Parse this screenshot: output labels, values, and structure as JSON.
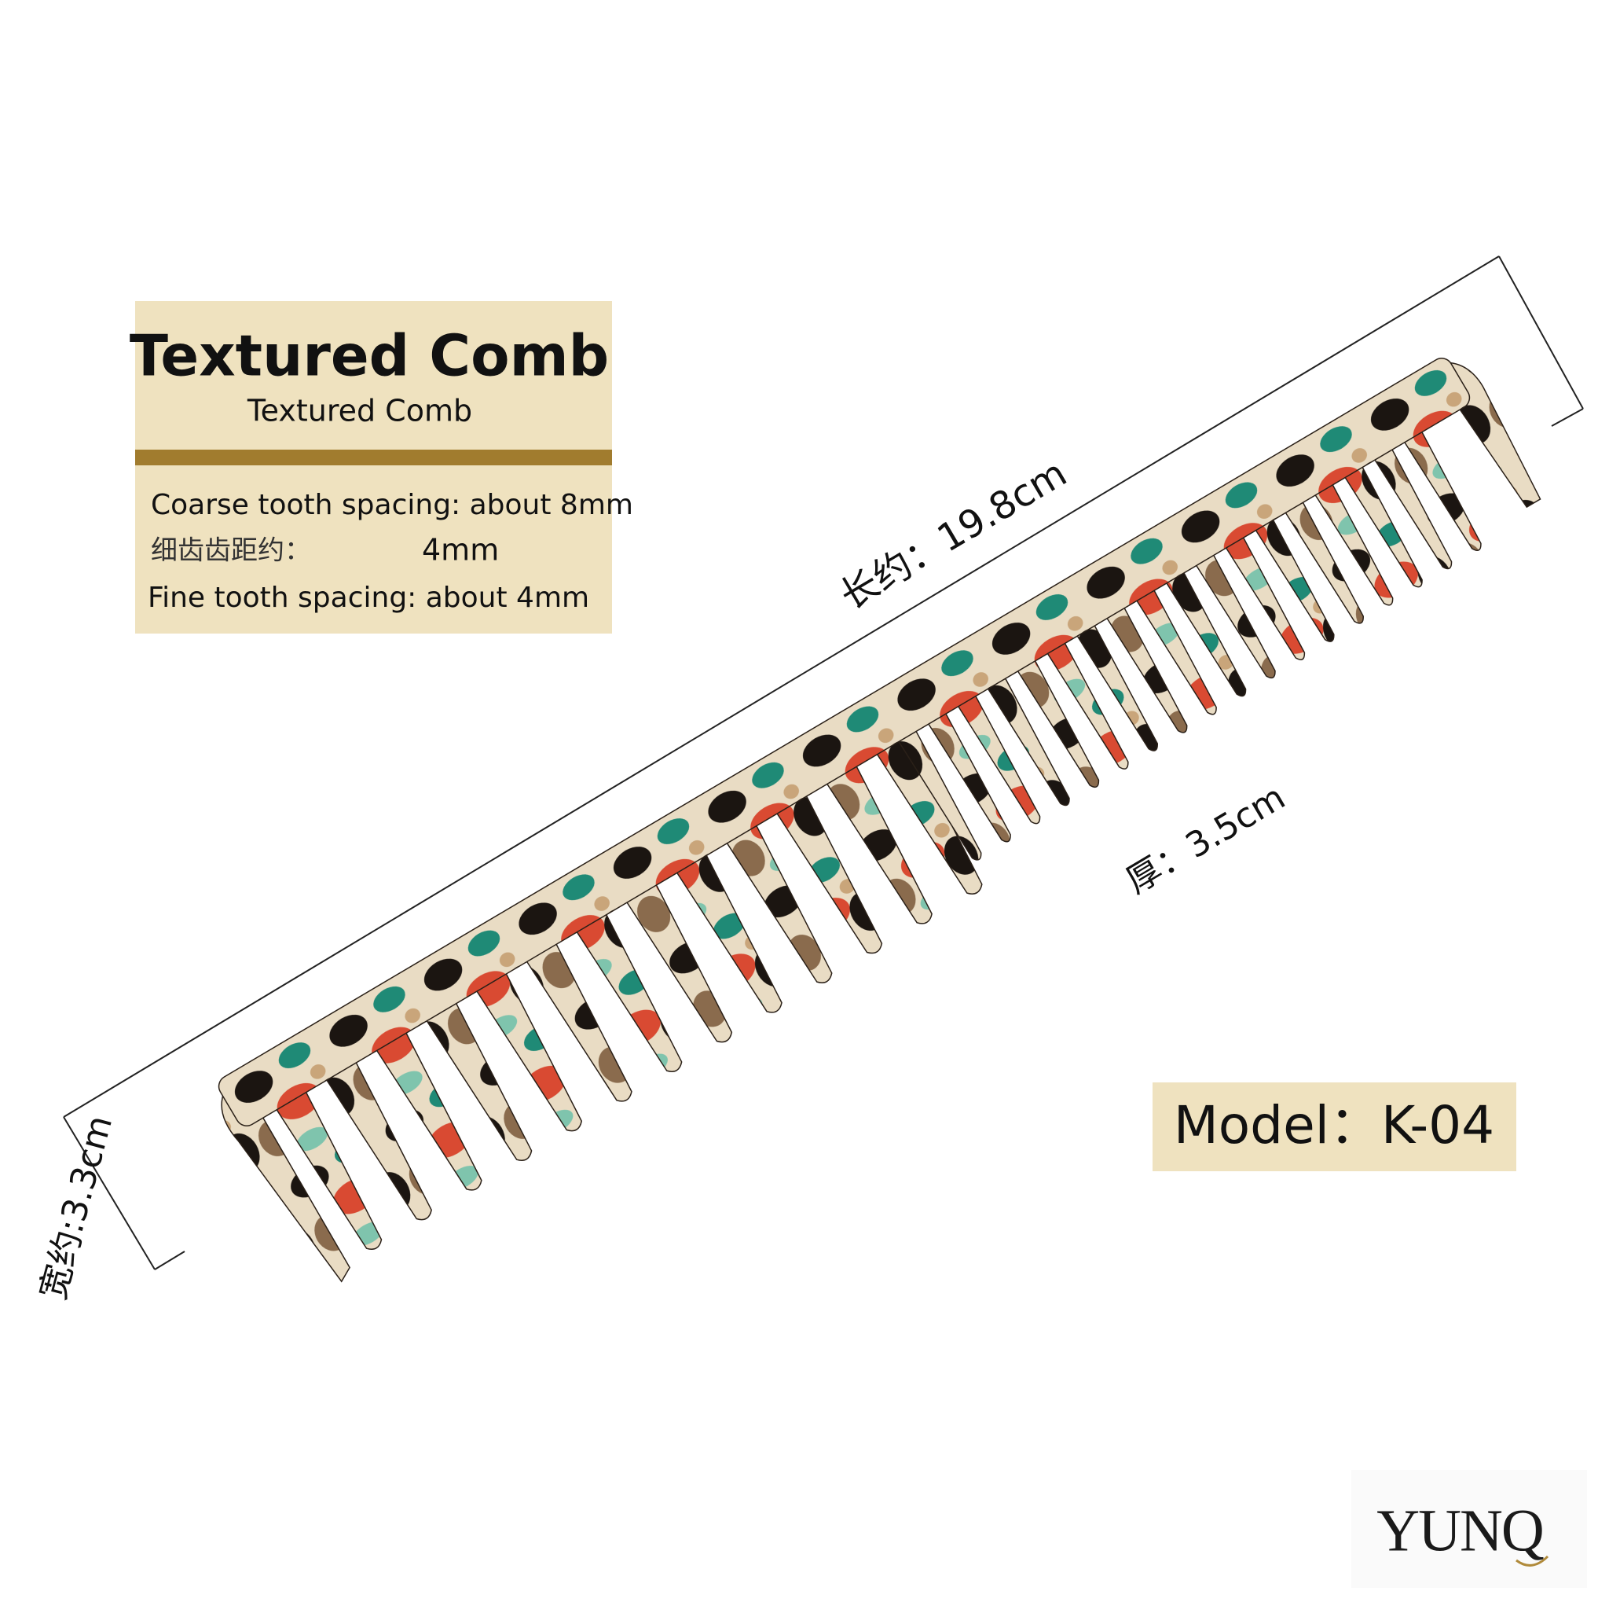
{
  "header": {
    "title": "Textured Comb",
    "subtitle": "Textured Comb"
  },
  "specs": [
    "Coarse tooth spacing: about 8mm",
    "细齿齿距约：",
    "4mm",
    "Fine tooth spacing: about 4mm"
  ],
  "dimensions": {
    "length": "长约：19.8cm",
    "thickness": "厚：3.5cm",
    "width": "宽约:3.3cm"
  },
  "model": "Model：K-04",
  "brand": "YUNQ"
}
